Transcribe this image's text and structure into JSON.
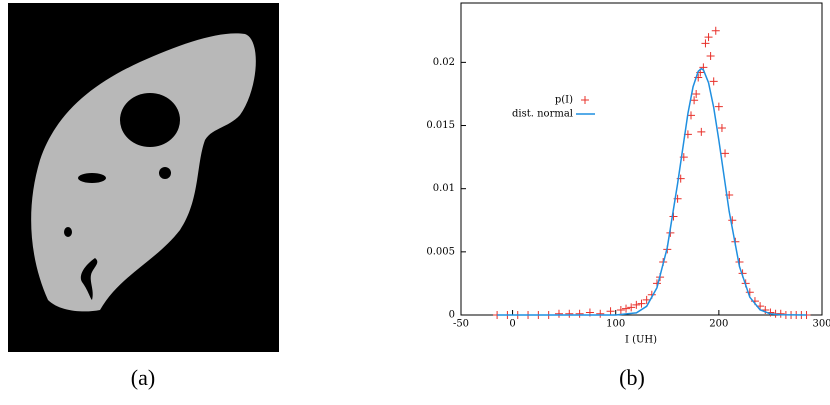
{
  "chart_data": {
    "type": "scatter",
    "xlabel": "I (UH)",
    "xlim": [
      -50,
      300
    ],
    "xticks": [
      -50,
      0,
      100,
      200,
      300
    ],
    "ylim": [
      0,
      0.0247
    ],
    "yticks": [
      0,
      0.005,
      0.01,
      0.015,
      0.02
    ],
    "legend": "top-left",
    "series": [
      {
        "name": "p(I)",
        "color": "#e8302a",
        "type": "scatter",
        "x": [
          -15,
          -5,
          5,
          15,
          25,
          35,
          45,
          55,
          65,
          75,
          85,
          95,
          105,
          110,
          115,
          120,
          125,
          130,
          135,
          140,
          143,
          146,
          150,
          153,
          156,
          160,
          163,
          166,
          170,
          173,
          176,
          178,
          180,
          182,
          183,
          185,
          187,
          190,
          192,
          195,
          197,
          200,
          203,
          206,
          210,
          213,
          216,
          220,
          223,
          226,
          230,
          235,
          240,
          245,
          250,
          255,
          260,
          265,
          270,
          275,
          280,
          285
        ],
        "values": [
          0,
          0,
          0,
          0,
          0,
          0,
          0.0001,
          0.0001,
          0.0001,
          0.0002,
          0.0001,
          0.0003,
          0.0004,
          0.0005,
          0.0006,
          0.0008,
          0.0009,
          0.0012,
          0.0016,
          0.0025,
          0.003,
          0.0042,
          0.0052,
          0.0065,
          0.0078,
          0.0092,
          0.0108,
          0.0125,
          0.0143,
          0.0158,
          0.017,
          0.0175,
          0.0188,
          0.0192,
          0.0145,
          0.0196,
          0.0215,
          0.022,
          0.0205,
          0.0185,
          0.0225,
          0.0165,
          0.0148,
          0.0128,
          0.0095,
          0.0075,
          0.0058,
          0.0042,
          0.0033,
          0.0025,
          0.0018,
          0.0011,
          0.0007,
          0.0004,
          0.0002,
          0.0001,
          0.0001,
          0,
          0,
          0,
          0,
          0
        ]
      },
      {
        "name": "dist. normal",
        "color": "#1f8fe0",
        "type": "line",
        "x": [
          -15,
          0,
          20,
          40,
          60,
          80,
          100,
          120,
          130,
          140,
          150,
          160,
          170,
          175,
          180,
          183,
          185,
          190,
          195,
          200,
          210,
          220,
          230,
          240,
          250,
          260,
          285
        ],
        "values": [
          0,
          0,
          0,
          0,
          0,
          0,
          0,
          0.00017,
          0.00069,
          0.00216,
          0.00534,
          0.0104,
          0.01595,
          0.01807,
          0.01929,
          0.0195,
          0.01941,
          0.01839,
          0.01643,
          0.01383,
          0.0082,
          0.00383,
          0.00141,
          0.00041,
          9e-05,
          2e-05,
          0
        ]
      }
    ]
  },
  "captions": [
    "(a)",
    "(b)"
  ]
}
